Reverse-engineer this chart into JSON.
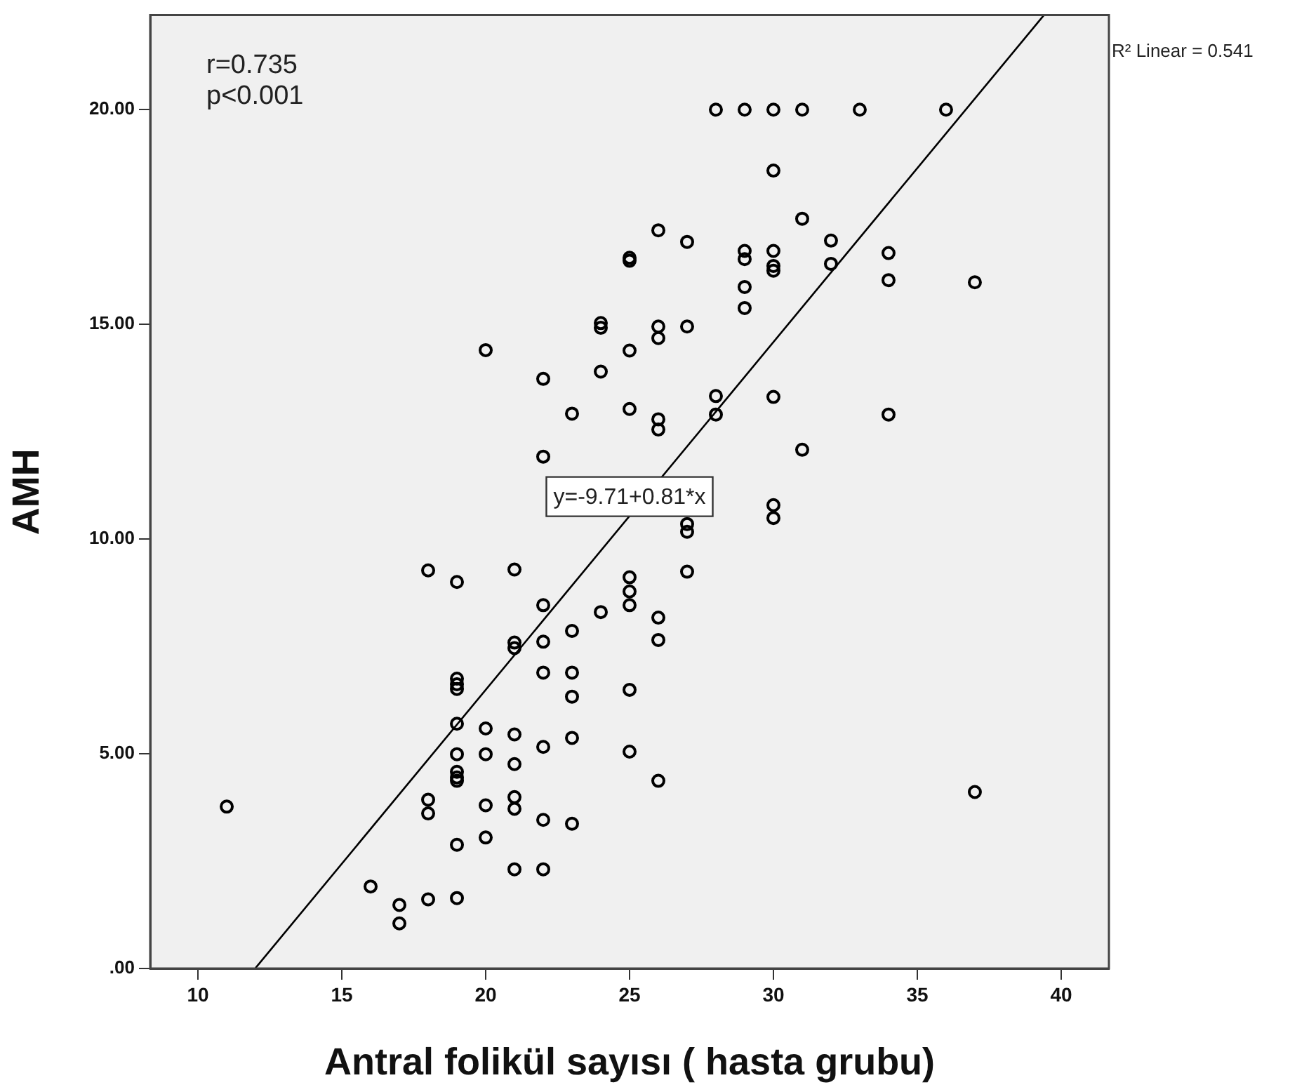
{
  "chart_data": {
    "type": "scatter",
    "xlabel": "Antral folikül sayısı ( hasta grubu)",
    "ylabel": "AMH",
    "xlim": [
      8.34,
      41.66
    ],
    "xticks": [
      10,
      15,
      20,
      25,
      30,
      35,
      40
    ],
    "ylim": [
      0,
      22.2
    ],
    "yticks": [
      {
        "value": 0,
        "label": ".00"
      },
      {
        "value": 5,
        "label": "5.00"
      },
      {
        "value": 10,
        "label": "10.00"
      },
      {
        "value": 15,
        "label": "15.00"
      },
      {
        "value": 20,
        "label": "20.00"
      }
    ],
    "grid": false,
    "legend": false,
    "marker": "circle",
    "series": [
      {
        "color": "#000000",
        "x": [
          20,
          22,
          24,
          24,
          24,
          23,
          22,
          28,
          29,
          30,
          31,
          33,
          36,
          30,
          31,
          26,
          27,
          25,
          25,
          29,
          29,
          30,
          30,
          30,
          32,
          32,
          34,
          34,
          37,
          29,
          29,
          26,
          26,
          27,
          25,
          25,
          26,
          26,
          28,
          28,
          30,
          34,
          31,
          30,
          30,
          27,
          27,
          27,
          25,
          25,
          25,
          24,
          26,
          26,
          25,
          25,
          26,
          37,
          18,
          19,
          21,
          22,
          21,
          21,
          22,
          23,
          22,
          23,
          23,
          19,
          19,
          19,
          19,
          20,
          21,
          22,
          23,
          19,
          20,
          21,
          19,
          19,
          19,
          11,
          18,
          18,
          20,
          21,
          21,
          22,
          23,
          19,
          20,
          21,
          22,
          16,
          17,
          17,
          18,
          19
        ],
        "values": [
          14.4,
          13.73,
          15.03,
          14.92,
          13.9,
          12.92,
          11.92,
          20,
          20,
          20,
          20,
          20,
          20,
          18.58,
          17.46,
          17.19,
          16.92,
          16.55,
          16.48,
          16.71,
          16.52,
          16.71,
          16.36,
          16.25,
          16.95,
          16.41,
          16.66,
          16.03,
          15.98,
          15.87,
          15.38,
          14.95,
          14.68,
          14.95,
          14.39,
          13.03,
          12.79,
          12.55,
          13.33,
          12.9,
          13.31,
          12.9,
          12.08,
          10.79,
          10.49,
          10.35,
          10.17,
          9.24,
          9.11,
          8.78,
          8.46,
          8.3,
          8.17,
          7.65,
          6.49,
          5.05,
          4.37,
          4.11,
          9.27,
          9.0,
          9.29,
          8.46,
          7.59,
          7.46,
          7.61,
          7.86,
          6.89,
          6.89,
          6.33,
          6.75,
          6.62,
          6.51,
          5.7,
          5.59,
          5.45,
          5.16,
          5.37,
          4.99,
          4.99,
          4.76,
          4.58,
          4.45,
          4.37,
          3.77,
          3.93,
          3.61,
          3.8,
          3.99,
          3.72,
          3.46,
          3.37,
          2.88,
          3.05,
          2.31,
          2.31,
          1.91,
          1.48,
          1.05,
          1.61,
          1.64
        ]
      },
      {
        "type": "line",
        "color": "#000000",
        "marker": "none",
        "x": [
          12,
          39.4
        ],
        "values": [
          0.01,
          22.2
        ]
      }
    ],
    "annotations": [
      "r=0.735",
      "p<0.001",
      "R² Linear = 0.541",
      "y=-9.71+0.81*x"
    ]
  }
}
